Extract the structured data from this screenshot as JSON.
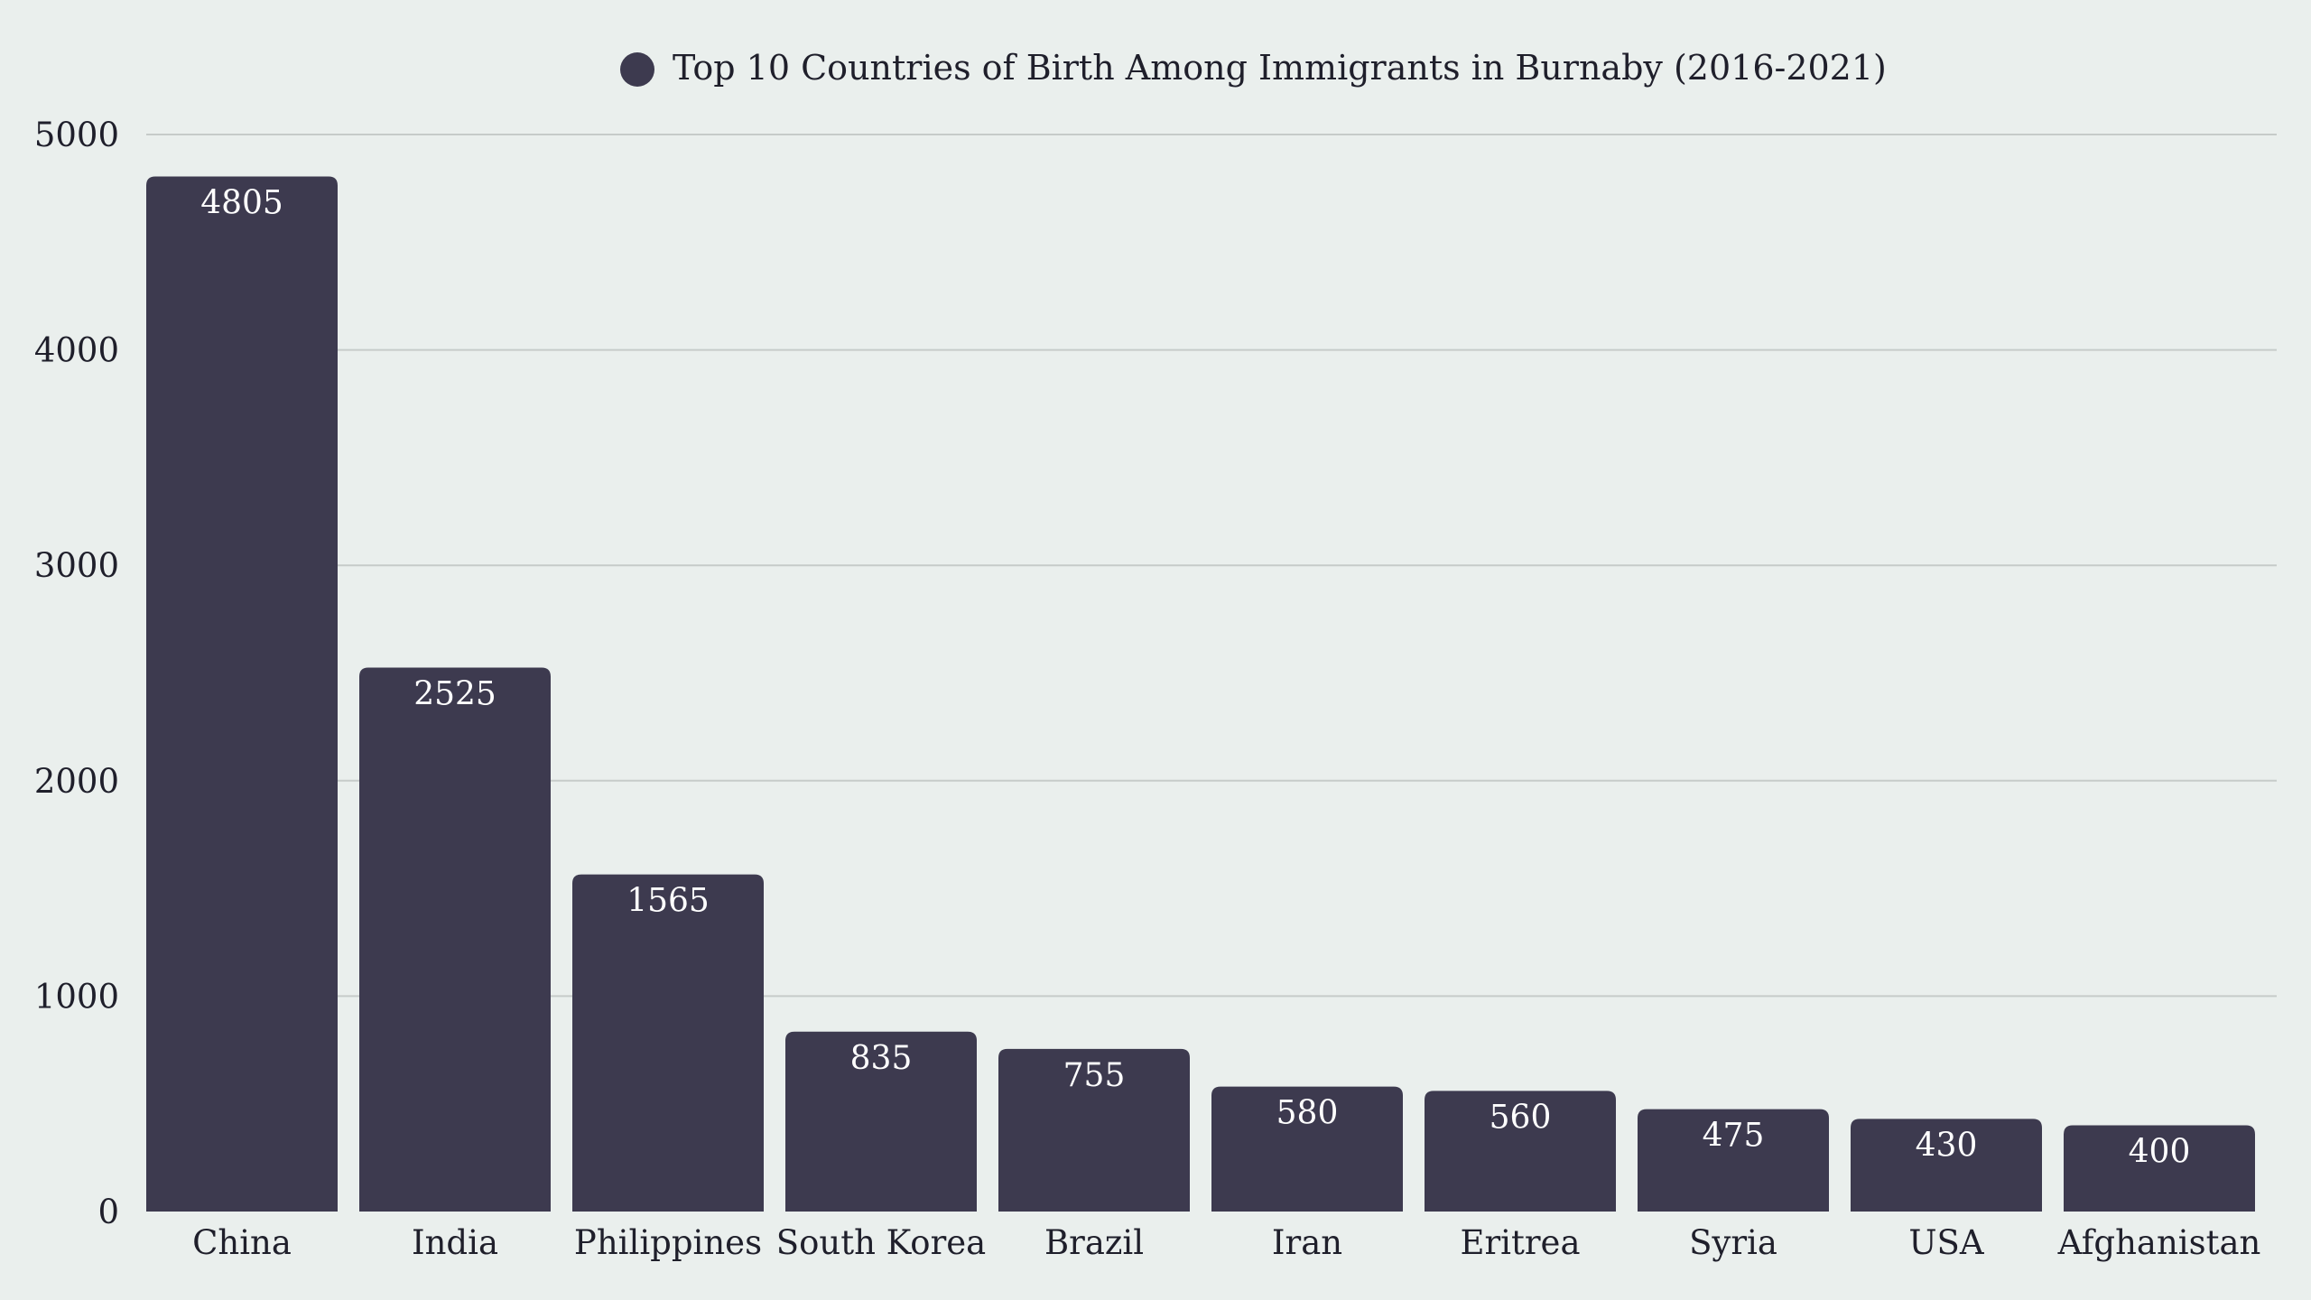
{
  "chart_data": {
    "type": "bar",
    "title": "",
    "xlabel": "",
    "ylabel": "",
    "ylim": [
      0,
      5000
    ],
    "yticks": [
      0,
      1000,
      2000,
      3000,
      4000,
      5000
    ],
    "grid": true,
    "legend_position": "top-center",
    "categories": [
      "China",
      "India",
      "Philippines",
      "South Korea",
      "Brazil",
      "Iran",
      "Eritrea",
      "Syria",
      "USA",
      "Afghanistan"
    ],
    "series": [
      {
        "name": "Top 10 Countries of Birth Among Immigrants in Burnaby (2016-2021)",
        "values": [
          4805,
          2525,
          1565,
          835,
          755,
          580,
          560,
          475,
          430,
          400
        ],
        "color": "#3d3a4f"
      }
    ]
  }
}
